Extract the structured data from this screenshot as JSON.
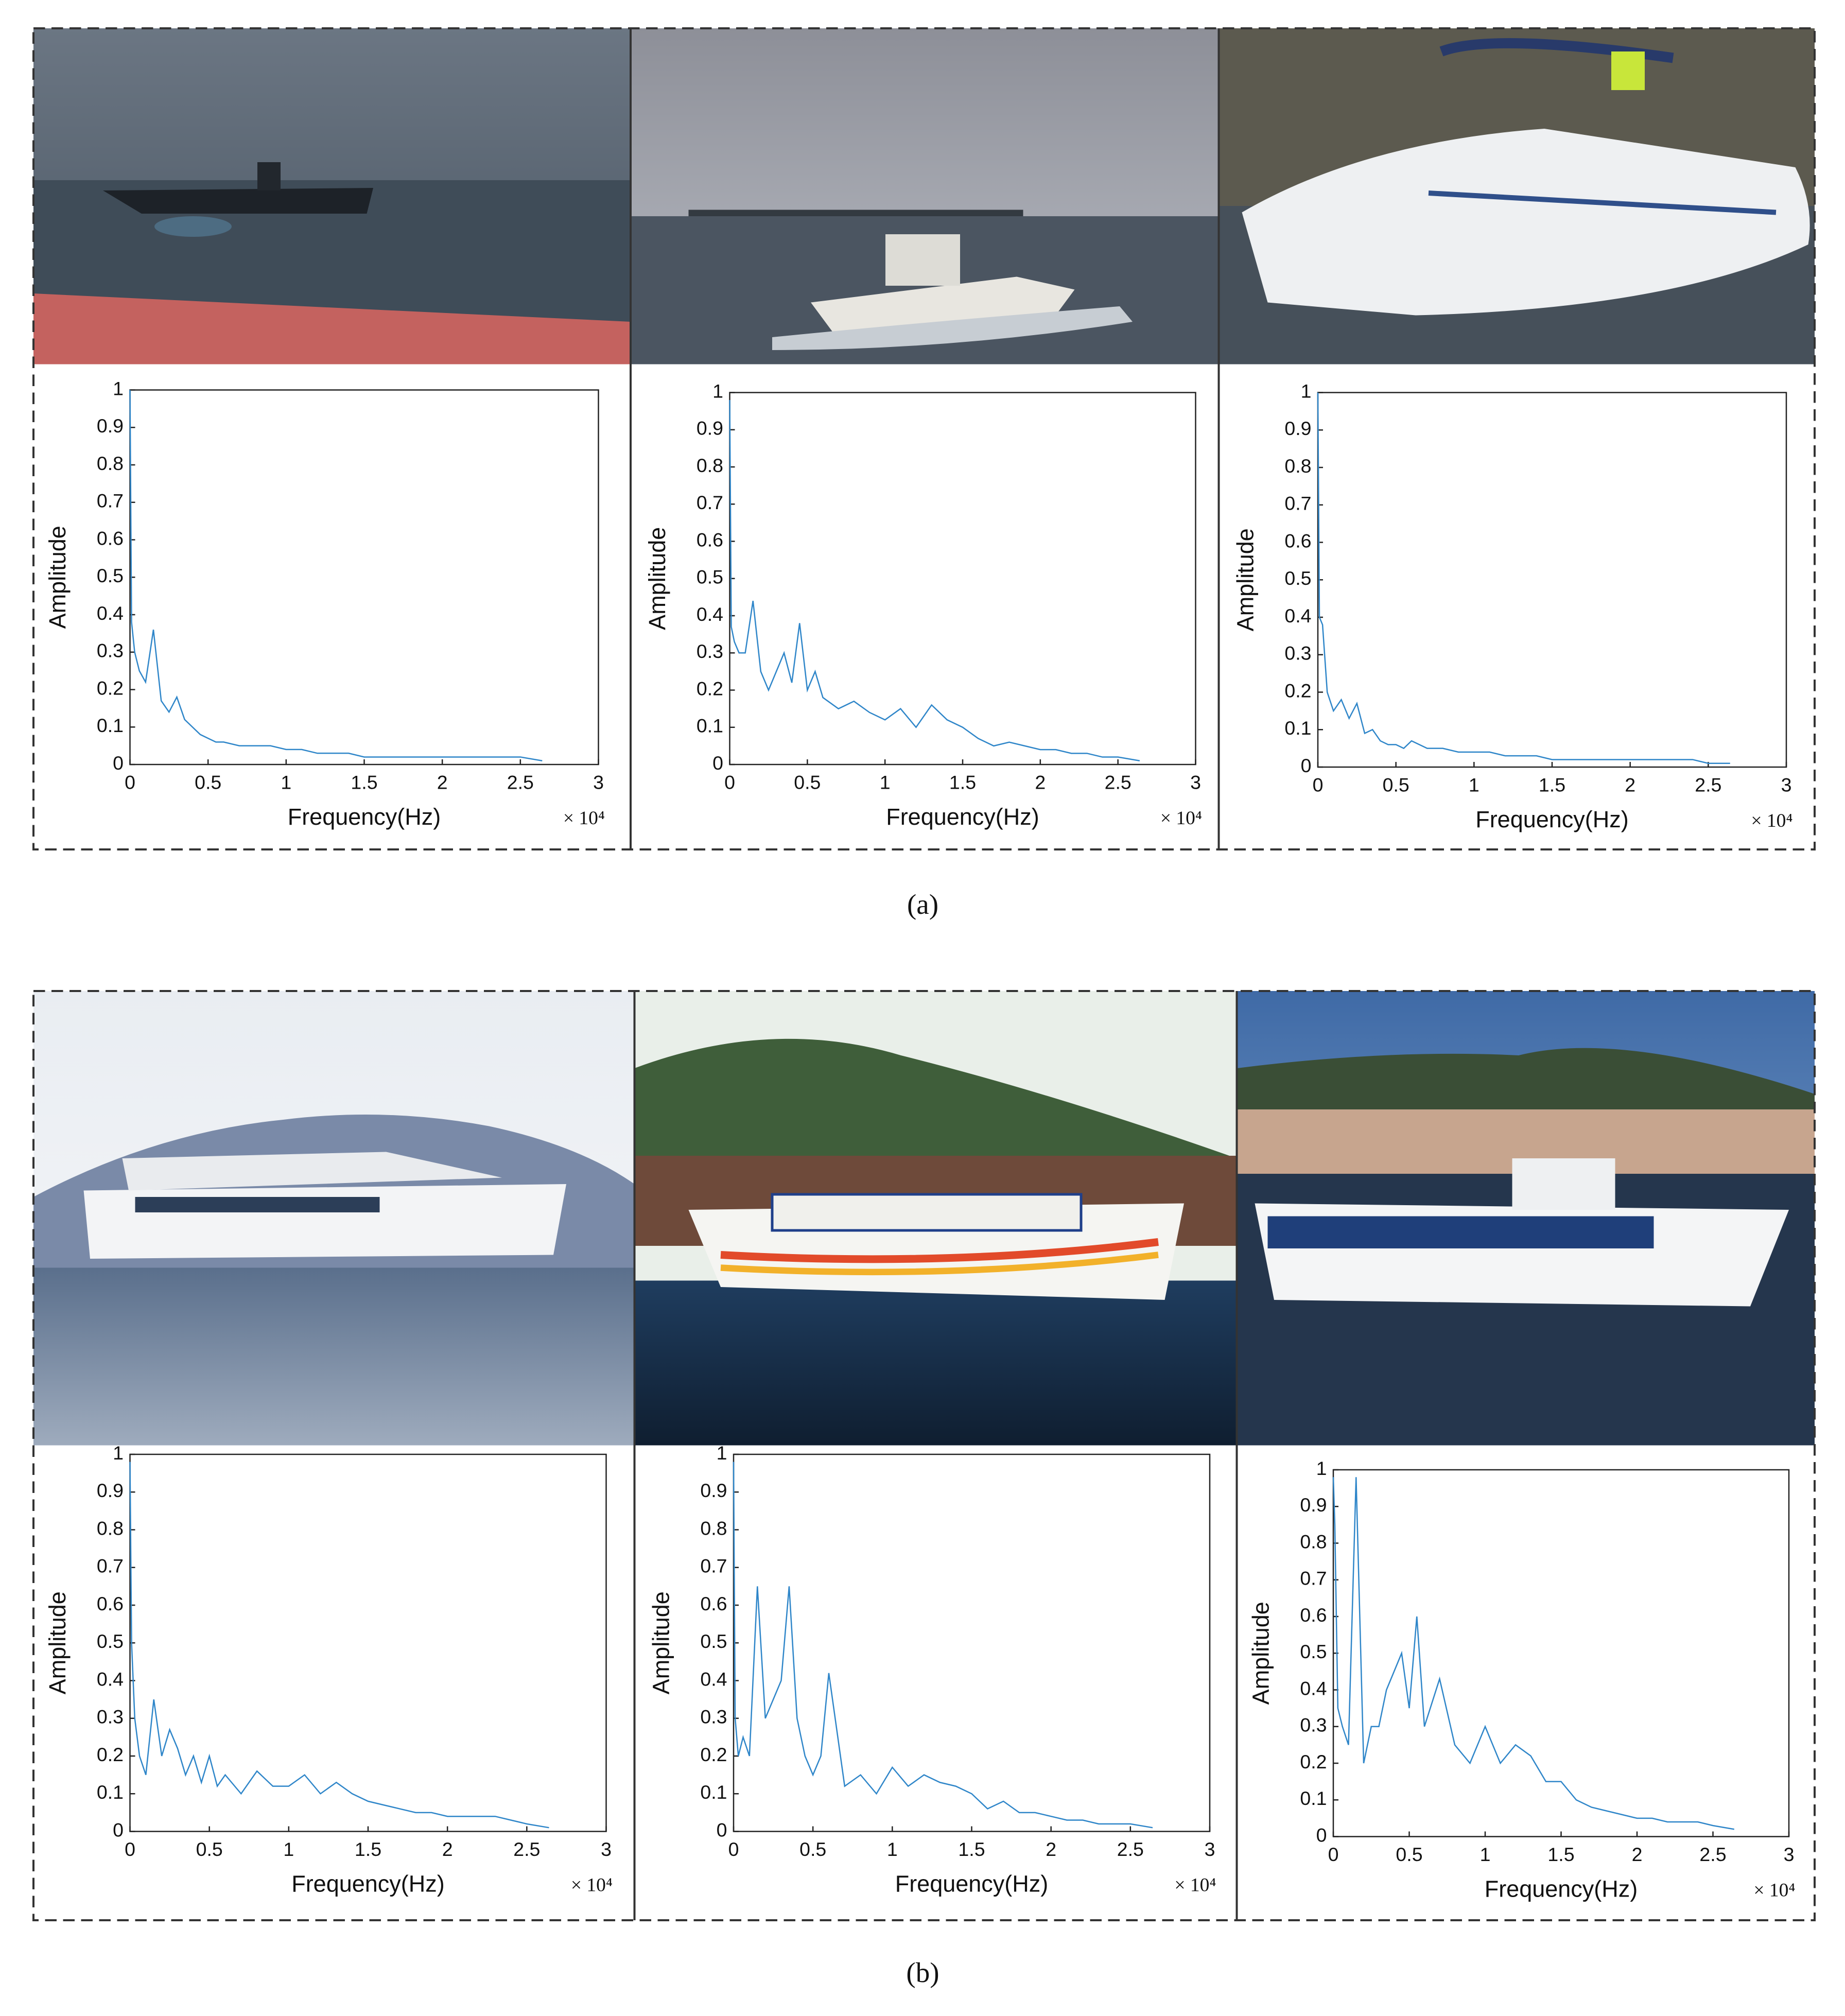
{
  "figure": {
    "captions": [
      "(a)",
      "(b)"
    ]
  },
  "chart_data": [
    {
      "type": "line",
      "y_label": "Amplitude",
      "x_label": "Frequency(Hz)",
      "x_multiplier": "× 10⁴",
      "color": "#2f86c9",
      "x": [
        0,
        100,
        300,
        600,
        1000,
        1500,
        2000,
        2500,
        3000,
        3500,
        4000,
        4500,
        5000,
        5500,
        6000,
        7000,
        8000,
        9000,
        10000,
        11000,
        12000,
        13000,
        14000,
        15000,
        16000,
        17000,
        18000,
        19000,
        20000,
        21000,
        22000,
        23000,
        24000,
        25000,
        26400
      ],
      "values": [
        1.0,
        0.38,
        0.3,
        0.25,
        0.22,
        0.36,
        0.17,
        0.14,
        0.18,
        0.12,
        0.1,
        0.08,
        0.07,
        0.06,
        0.06,
        0.05,
        0.05,
        0.05,
        0.04,
        0.04,
        0.03,
        0.03,
        0.03,
        0.02,
        0.02,
        0.02,
        0.02,
        0.02,
        0.02,
        0.02,
        0.02,
        0.02,
        0.02,
        0.02,
        0.01
      ],
      "xlim": [
        0,
        30000
      ],
      "ylim": [
        0,
        1
      ],
      "xticks": [
        0,
        {
          "value": 5000,
          "label": "0.5"
        },
        {
          "value": 10000,
          "label": "1"
        },
        {
          "value": 15000,
          "label": "1.5"
        },
        {
          "value": 20000,
          "label": "2"
        },
        {
          "value": 25000,
          "label": "2.5"
        },
        {
          "value": 30000,
          "label": "3"
        }
      ],
      "yticks": [
        0,
        0.1,
        0.2,
        0.3,
        0.4,
        0.5,
        0.6,
        0.7,
        0.8,
        0.9,
        1
      ]
    },
    {
      "type": "line",
      "y_label": "Amplitude",
      "x_label": "Frequency(Hz)",
      "x_multiplier": "× 10⁴",
      "color": "#2f86c9",
      "x": [
        0,
        100,
        300,
        600,
        1000,
        1500,
        2000,
        2500,
        3000,
        3500,
        4000,
        4500,
        5000,
        5500,
        6000,
        7000,
        8000,
        9000,
        10000,
        11000,
        12000,
        13000,
        14000,
        15000,
        16000,
        17000,
        18000,
        19000,
        20000,
        21000,
        22000,
        23000,
        24000,
        25000,
        26400
      ],
      "values": [
        0.98,
        0.37,
        0.33,
        0.3,
        0.3,
        0.44,
        0.25,
        0.2,
        0.25,
        0.3,
        0.22,
        0.38,
        0.2,
        0.25,
        0.18,
        0.15,
        0.17,
        0.14,
        0.12,
        0.15,
        0.1,
        0.16,
        0.12,
        0.1,
        0.07,
        0.05,
        0.06,
        0.05,
        0.04,
        0.04,
        0.03,
        0.03,
        0.02,
        0.02,
        0.01
      ],
      "xlim": [
        0,
        30000
      ],
      "ylim": [
        0,
        1
      ],
      "xticks": [
        0,
        {
          "value": 5000,
          "label": "0.5"
        },
        {
          "value": 10000,
          "label": "1"
        },
        {
          "value": 15000,
          "label": "1.5"
        },
        {
          "value": 20000,
          "label": "2"
        },
        {
          "value": 25000,
          "label": "2.5"
        },
        {
          "value": 30000,
          "label": "3"
        }
      ],
      "yticks": [
        0,
        0.1,
        0.2,
        0.3,
        0.4,
        0.5,
        0.6,
        0.7,
        0.8,
        0.9,
        1
      ]
    },
    {
      "type": "line",
      "y_label": "Amplitude",
      "x_label": "Frequency(Hz)",
      "x_multiplier": "× 10⁴",
      "color": "#2f86c9",
      "x": [
        0,
        100,
        300,
        600,
        1000,
        1500,
        2000,
        2500,
        3000,
        3500,
        4000,
        4500,
        5000,
        5500,
        6000,
        7000,
        8000,
        9000,
        10000,
        11000,
        12000,
        13000,
        14000,
        15000,
        16000,
        17000,
        18000,
        19000,
        20000,
        21000,
        22000,
        23000,
        24000,
        25000,
        26400
      ],
      "values": [
        1.0,
        0.4,
        0.38,
        0.2,
        0.15,
        0.18,
        0.13,
        0.17,
        0.09,
        0.1,
        0.07,
        0.06,
        0.06,
        0.05,
        0.07,
        0.05,
        0.05,
        0.04,
        0.04,
        0.04,
        0.03,
        0.03,
        0.03,
        0.02,
        0.02,
        0.02,
        0.02,
        0.02,
        0.02,
        0.02,
        0.02,
        0.02,
        0.02,
        0.01,
        0.01
      ],
      "xlim": [
        0,
        30000
      ],
      "ylim": [
        0,
        1
      ],
      "xticks": [
        0,
        {
          "value": 5000,
          "label": "0.5"
        },
        {
          "value": 10000,
          "label": "1"
        },
        {
          "value": 15000,
          "label": "1.5"
        },
        {
          "value": 20000,
          "label": "2"
        },
        {
          "value": 25000,
          "label": "2.5"
        },
        {
          "value": 30000,
          "label": "3"
        }
      ],
      "yticks": [
        0,
        0.1,
        0.2,
        0.3,
        0.4,
        0.5,
        0.6,
        0.7,
        0.8,
        0.9,
        1
      ]
    },
    {
      "type": "line",
      "y_label": "Amplitude",
      "x_label": "Frequency(Hz)",
      "x_multiplier": "× 10⁴",
      "color": "#2f86c9",
      "x": [
        0,
        100,
        300,
        600,
        1000,
        1500,
        2000,
        2500,
        3000,
        3500,
        4000,
        4500,
        5000,
        5500,
        6000,
        7000,
        8000,
        9000,
        10000,
        11000,
        12000,
        13000,
        14000,
        15000,
        16000,
        17000,
        18000,
        19000,
        20000,
        21000,
        22000,
        23000,
        24000,
        25000,
        26400
      ],
      "values": [
        0.98,
        0.5,
        0.3,
        0.2,
        0.15,
        0.35,
        0.2,
        0.27,
        0.22,
        0.15,
        0.2,
        0.13,
        0.2,
        0.12,
        0.15,
        0.1,
        0.16,
        0.12,
        0.12,
        0.15,
        0.1,
        0.13,
        0.1,
        0.08,
        0.07,
        0.06,
        0.05,
        0.05,
        0.04,
        0.04,
        0.04,
        0.04,
        0.03,
        0.02,
        0.01
      ],
      "xlim": [
        0,
        30000
      ],
      "ylim": [
        0,
        1
      ],
      "xticks": [
        0,
        {
          "value": 5000,
          "label": "0.5"
        },
        {
          "value": 10000,
          "label": "1"
        },
        {
          "value": 15000,
          "label": "1.5"
        },
        {
          "value": 20000,
          "label": "2"
        },
        {
          "value": 25000,
          "label": "2.5"
        },
        {
          "value": 30000,
          "label": "3"
        }
      ],
      "yticks": [
        0,
        0.1,
        0.2,
        0.3,
        0.4,
        0.5,
        0.6,
        0.7,
        0.8,
        0.9,
        1
      ]
    },
    {
      "type": "line",
      "y_label": "Amplitude",
      "x_label": "Frequency(Hz)",
      "x_multiplier": "× 10⁴",
      "color": "#2f86c9",
      "x": [
        0,
        100,
        300,
        600,
        1000,
        1500,
        2000,
        2500,
        3000,
        3500,
        4000,
        4500,
        5000,
        5500,
        6000,
        7000,
        8000,
        9000,
        10000,
        11000,
        12000,
        13000,
        14000,
        15000,
        16000,
        17000,
        18000,
        19000,
        20000,
        21000,
        22000,
        23000,
        24000,
        25000,
        26400
      ],
      "values": [
        0.98,
        0.3,
        0.2,
        0.25,
        0.2,
        0.65,
        0.3,
        0.35,
        0.4,
        0.65,
        0.3,
        0.2,
        0.15,
        0.2,
        0.42,
        0.12,
        0.15,
        0.1,
        0.17,
        0.12,
        0.15,
        0.13,
        0.12,
        0.1,
        0.06,
        0.08,
        0.05,
        0.05,
        0.04,
        0.03,
        0.03,
        0.02,
        0.02,
        0.02,
        0.01
      ],
      "xlim": [
        0,
        30000
      ],
      "ylim": [
        0,
        1
      ],
      "xticks": [
        0,
        {
          "value": 5000,
          "label": "0.5"
        },
        {
          "value": 10000,
          "label": "1"
        },
        {
          "value": 15000,
          "label": "1.5"
        },
        {
          "value": 20000,
          "label": "2"
        },
        {
          "value": 25000,
          "label": "2.5"
        },
        {
          "value": 30000,
          "label": "3"
        }
      ],
      "yticks": [
        0,
        0.1,
        0.2,
        0.3,
        0.4,
        0.5,
        0.6,
        0.7,
        0.8,
        0.9,
        1
      ]
    },
    {
      "type": "line",
      "y_label": "Amplitude",
      "x_label": "Frequency(Hz)",
      "x_multiplier": "× 10⁴",
      "color": "#2f86c9",
      "x": [
        0,
        100,
        300,
        600,
        1000,
        1500,
        2000,
        2500,
        3000,
        3500,
        4000,
        4500,
        5000,
        5500,
        6000,
        7000,
        8000,
        9000,
        10000,
        11000,
        12000,
        13000,
        14000,
        15000,
        16000,
        17000,
        18000,
        19000,
        20000,
        21000,
        22000,
        23000,
        24000,
        25000,
        26400
      ],
      "values": [
        0.98,
        0.85,
        0.35,
        0.3,
        0.25,
        0.98,
        0.2,
        0.3,
        0.3,
        0.4,
        0.45,
        0.5,
        0.35,
        0.6,
        0.3,
        0.43,
        0.25,
        0.2,
        0.3,
        0.2,
        0.25,
        0.22,
        0.15,
        0.15,
        0.1,
        0.08,
        0.07,
        0.06,
        0.05,
        0.05,
        0.04,
        0.04,
        0.04,
        0.03,
        0.02
      ],
      "xlim": [
        0,
        30000
      ],
      "ylim": [
        0,
        1
      ],
      "xticks": [
        0,
        {
          "value": 5000,
          "label": "0.5"
        },
        {
          "value": 10000,
          "label": "1"
        },
        {
          "value": 15000,
          "label": "1.5"
        },
        {
          "value": 20000,
          "label": "2"
        },
        {
          "value": 25000,
          "label": "2.5"
        },
        {
          "value": 30000,
          "label": "3"
        }
      ],
      "yticks": [
        0,
        0.1,
        0.2,
        0.3,
        0.4,
        0.5,
        0.6,
        0.7,
        0.8,
        0.9,
        1
      ]
    }
  ]
}
